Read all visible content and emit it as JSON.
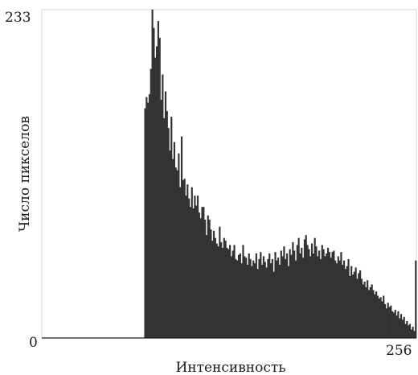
{
  "chart_data": {
    "type": "bar",
    "xlabel": "Интенсивность",
    "ylabel": "Число пикселов",
    "xlim": [
      0,
      256
    ],
    "ylim": [
      0,
      233
    ],
    "x_tick_labels": [
      "256"
    ],
    "y_tick_labels": [
      "233",
      "0"
    ],
    "grid": false,
    "legend": "none",
    "bar_color": "#333333",
    "frame_color": "#d6d6d6",
    "x_start": 70,
    "values": [
      163,
      171,
      167,
      173,
      191,
      233,
      220,
      199,
      207,
      225,
      213,
      169,
      187,
      156,
      175,
      161,
      149,
      133,
      157,
      127,
      139,
      121,
      119,
      131,
      107,
      143,
      112,
      113,
      101,
      109,
      99,
      93,
      107,
      92,
      101,
      94,
      101,
      89,
      85,
      93,
      93,
      84,
      73,
      87,
      84,
      77,
      69,
      76,
      71,
      67,
      65,
      79,
      68,
      64,
      71,
      69,
      64,
      63,
      66,
      58,
      62,
      66,
      56,
      55,
      59,
      60,
      53,
      66,
      58,
      57,
      52,
      60,
      56,
      51,
      55,
      53,
      60,
      49,
      56,
      61,
      52,
      58,
      54,
      50,
      56,
      60,
      53,
      56,
      47,
      61,
      55,
      57,
      52,
      62,
      58,
      65,
      56,
      60,
      51,
      63,
      59,
      68,
      62,
      55,
      66,
      71,
      60,
      64,
      57,
      70,
      73,
      66,
      63,
      58,
      67,
      60,
      71,
      65,
      58,
      62,
      56,
      66,
      63,
      58,
      60,
      64,
      61,
      57,
      61,
      62,
      55,
      53,
      58,
      55,
      61,
      52,
      55,
      49,
      51,
      56,
      44,
      51,
      45,
      47,
      50,
      42,
      46,
      48,
      42,
      38,
      40,
      36,
      41,
      34,
      36,
      38,
      34,
      31,
      33,
      30,
      28,
      29,
      26,
      30,
      24,
      21,
      25,
      22,
      23,
      19,
      18,
      20,
      16,
      19,
      14,
      17,
      13,
      15,
      10,
      12,
      9,
      10,
      6,
      8,
      5,
      55
    ]
  }
}
